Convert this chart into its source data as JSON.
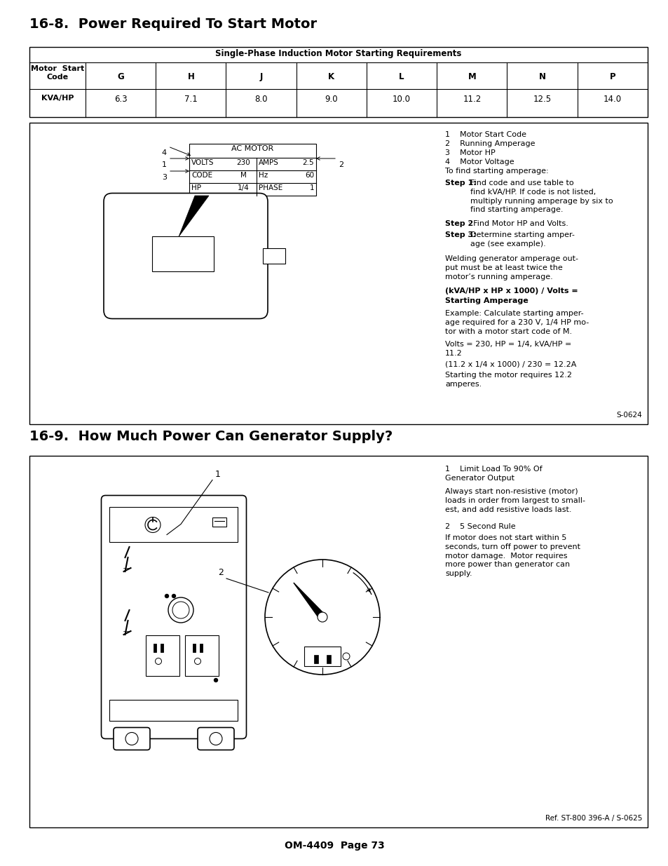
{
  "title_1": "16-8.  Power Required To Start Motor",
  "title_2": "16-9.  How Much Power Can Generator Supply?",
  "table_header": "Single-Phase Induction Motor Starting Requirements",
  "table_col1_header": "Motor  Start\nCode",
  "table_row2_header": "KVA/HP",
  "table_cols": [
    "G",
    "H",
    "J",
    "K",
    "L",
    "M",
    "N",
    "P"
  ],
  "table_vals": [
    "6.3",
    "7.1",
    "8.0",
    "9.0",
    "10.0",
    "11.2",
    "12.5",
    "14.0"
  ],
  "section1_notes_plain": [
    "1    Motor Start Code",
    "2    Running Amperage",
    "3    Motor HP",
    "4    Motor Voltage",
    "To find starting amperage:"
  ],
  "section1_welding_note": "Welding generator amperage out-\nput must be at least twice the\nmotor’s running amperage.",
  "section1_formula_line1": "(kVA/HP x HP x 1000) / Volts =",
  "section1_formula_line2": "Starting Amperage",
  "section1_example": "Example: Calculate starting amper-\nage required for a 230 V, 1/4 HP mo-\ntor with a motor start code of M.",
  "section1_volts": "Volts = 230, HP = 1/4, kVA/HP =\n11.2",
  "section1_calc": "(11.2 x 1/4 x 1000) / 230 = 12.2A",
  "section1_starting": "Starting the motor requires 12.2\namperes.",
  "section1_ref": "S-0624",
  "section2_note1": "Limit Load To 90% Of\nGenerator Output",
  "section2_note2": "Always start non-resistive (motor)\nloads in order from largest to small-\nest, and add resistive loads last.",
  "section2_note3": "5 Second Rule",
  "section2_note4": "If motor does not start within 5\nseconds, turn off power to prevent\nmotor damage.  Motor requires\nmore power than generator can\nsupply.",
  "section2_ref": "Ref. ST-800 396-A / S-0625",
  "footer": "OM-4409  Page 73",
  "bg_color": "#ffffff"
}
